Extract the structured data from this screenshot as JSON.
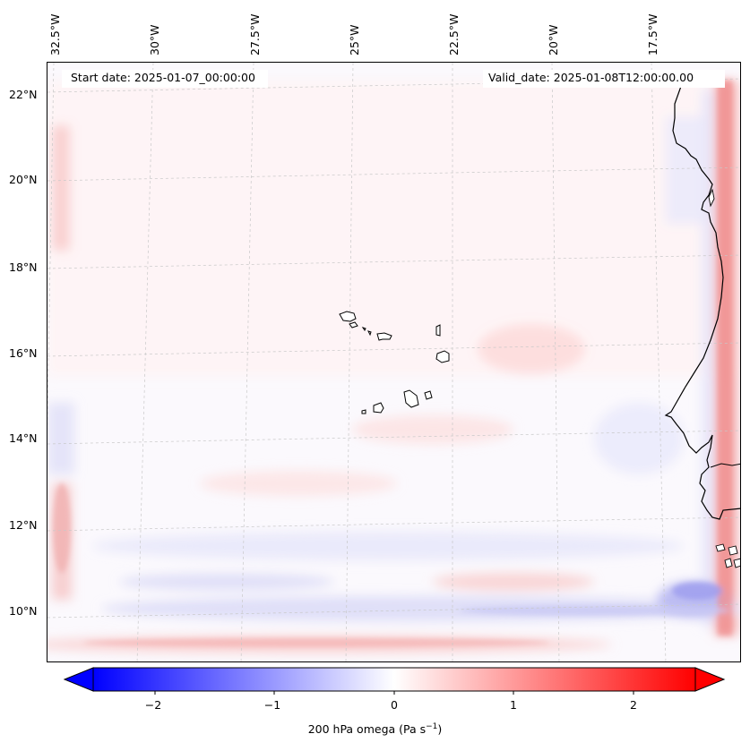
{
  "map": {
    "start_date": "Start date: 2025-01-07_00:00:00",
    "valid_date": "Valid_date: 2025-01-08T12:00:00.00",
    "lon_labels": [
      "32.5°W",
      "30°W",
      "27.5°W",
      "25°W",
      "22.5°W",
      "20°W",
      "17.5°W"
    ],
    "lat_labels": [
      "22°N",
      "20°N",
      "18°N",
      "16°N",
      "14°N",
      "12°N",
      "10°N"
    ],
    "coastline_color": "#000000",
    "features": [
      "cape-verde-islands",
      "west-africa-coastline"
    ]
  },
  "colorbar": {
    "ticks": [
      "−2",
      "−1",
      "0",
      "1",
      "2"
    ],
    "label": "200 hPa omega (Pa s",
    "label_exp": "−1",
    "label_close": ")",
    "min_color": "#0000ff",
    "mid_color": "#ffffff",
    "max_color": "#ff0000"
  }
}
